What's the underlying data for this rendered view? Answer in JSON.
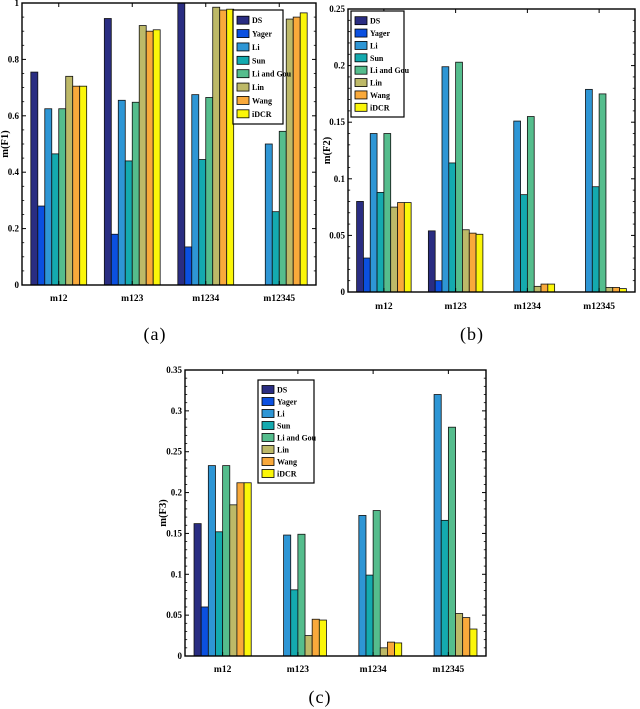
{
  "chart_data": [
    {
      "id": "a",
      "type": "bar",
      "caption": "(a)",
      "title": "",
      "xlabel": "",
      "ylabel": "m(F1)",
      "categories": [
        "m12",
        "m123",
        "m1234",
        "m12345"
      ],
      "ylim": [
        0,
        1
      ],
      "ytick_step": 0.2,
      "yminor_step": 0.05,
      "grid": "off",
      "legend_position": "top-right",
      "series": [
        {
          "name": "DS",
          "color": "#2A2D82",
          "values": [
            0.755,
            0.945,
            1.0,
            0
          ]
        },
        {
          "name": "Yager",
          "color": "#0B50E0",
          "values": [
            0.28,
            0.18,
            0.135,
            0
          ]
        },
        {
          "name": "Li",
          "color": "#2E96D5",
          "values": [
            0.625,
            0.655,
            0.675,
            0.5
          ]
        },
        {
          "name": "Sun",
          "color": "#14AAAF",
          "values": [
            0.465,
            0.44,
            0.445,
            0.26
          ]
        },
        {
          "name": "Li and Gou",
          "color": "#55BD8D",
          "values": [
            0.625,
            0.648,
            0.665,
            0.545
          ]
        },
        {
          "name": "Lin",
          "color": "#BDB968",
          "values": [
            0.74,
            0.92,
            0.985,
            0.943
          ]
        },
        {
          "name": "Wang",
          "color": "#F9A93B",
          "values": [
            0.705,
            0.9,
            0.975,
            0.95
          ]
        },
        {
          "name": "iDCR",
          "color": "#FBF609",
          "values": [
            0.705,
            0.905,
            0.978,
            0.965
          ]
        }
      ]
    },
    {
      "id": "b",
      "type": "bar",
      "caption": "(b)",
      "title": "",
      "xlabel": "",
      "ylabel": "m(F2)",
      "categories": [
        "m12",
        "m123",
        "m1234",
        "m12345"
      ],
      "ylim": [
        0,
        0.25
      ],
      "ytick_step": 0.05,
      "yminor_step": 0.01,
      "grid": "off",
      "legend_position": "top-left",
      "series": [
        {
          "name": "DS",
          "color": "#2A2D82",
          "values": [
            0.08,
            0.054,
            0,
            0
          ]
        },
        {
          "name": "Yager",
          "color": "#0B50E0",
          "values": [
            0.03,
            0.01,
            0,
            0
          ]
        },
        {
          "name": "Li",
          "color": "#2E96D5",
          "values": [
            0.14,
            0.199,
            0.151,
            0.179
          ]
        },
        {
          "name": "Sun",
          "color": "#14AAAF",
          "values": [
            0.088,
            0.114,
            0.086,
            0.093
          ]
        },
        {
          "name": "Li and Gou",
          "color": "#55BD8D",
          "values": [
            0.14,
            0.203,
            0.155,
            0.175
          ]
        },
        {
          "name": "Lin",
          "color": "#BDB968",
          "values": [
            0.075,
            0.055,
            0.005,
            0.004
          ]
        },
        {
          "name": "Wang",
          "color": "#F9A93B",
          "values": [
            0.079,
            0.052,
            0.007,
            0.004
          ]
        },
        {
          "name": "iDCR",
          "color": "#FBF609",
          "values": [
            0.079,
            0.051,
            0.007,
            0.003
          ]
        }
      ]
    },
    {
      "id": "c",
      "type": "bar",
      "caption": "(c)",
      "title": "",
      "xlabel": "",
      "ylabel": "m(F3)",
      "categories": [
        "m12",
        "m123",
        "m1234",
        "m12345"
      ],
      "ylim": [
        0,
        0.35
      ],
      "ytick_step": 0.05,
      "yminor_step": 0.01,
      "grid": "off",
      "legend_position": "top-left-inset",
      "series": [
        {
          "name": "DS",
          "color": "#2A2D82",
          "values": [
            0.162,
            0,
            0,
            0
          ]
        },
        {
          "name": "Yager",
          "color": "#0B50E0",
          "values": [
            0.06,
            0,
            0,
            0
          ]
        },
        {
          "name": "Li",
          "color": "#2E96D5",
          "values": [
            0.233,
            0.148,
            0.172,
            0.32
          ]
        },
        {
          "name": "Sun",
          "color": "#14AAAF",
          "values": [
            0.152,
            0.081,
            0.099,
            0.166
          ]
        },
        {
          "name": "Li and Gou",
          "color": "#55BD8D",
          "values": [
            0.233,
            0.149,
            0.178,
            0.28
          ]
        },
        {
          "name": "Lin",
          "color": "#BDB968",
          "values": [
            0.185,
            0.025,
            0.01,
            0.052
          ]
        },
        {
          "name": "Wang",
          "color": "#F9A93B",
          "values": [
            0.212,
            0.045,
            0.017,
            0.047
          ]
        },
        {
          "name": "iDCR",
          "color": "#FBF609",
          "values": [
            0.212,
            0.044,
            0.016,
            0.033
          ]
        }
      ]
    }
  ]
}
